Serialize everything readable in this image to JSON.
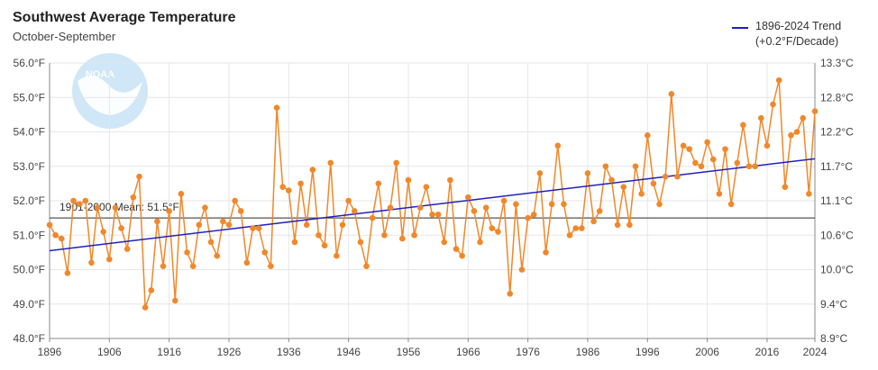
{
  "title": "Southwest Average Temperature",
  "subtitle": "October-September",
  "logo_text": "NOAA",
  "legend": {
    "trend_label": "1896-2024 Trend",
    "trend_sublabel": "(+0.2°F/Decade)"
  },
  "colors": {
    "series": "#f0882a",
    "trend": "#1f1fbf",
    "mean_line": "#555555",
    "grid": "#e6e6e6",
    "logo": "#a8d4ee"
  },
  "chart_data": {
    "type": "line",
    "title": "Southwest Average Temperature",
    "subtitle": "October-September",
    "xlim": [
      1896,
      2024
    ],
    "ylim_left": [
      48.0,
      56.0
    ],
    "x_ticks": [
      "1896",
      "1906",
      "1916",
      "1926",
      "1936",
      "1946",
      "1956",
      "1966",
      "1976",
      "1986",
      "1996",
      "2006",
      "2016",
      "2024"
    ],
    "y_ticks_left": [
      "48.0°F",
      "49.0°F",
      "50.0°F",
      "51.0°F",
      "52.0°F",
      "53.0°F",
      "54.0°F",
      "55.0°F",
      "56.0°F"
    ],
    "y_ticks_right": [
      "8.9°C",
      "9.4°C",
      "10.0°C",
      "10.6°C",
      "11.1°C",
      "11.7°C",
      "12.2°C",
      "12.8°C",
      "13.3°C"
    ],
    "grid": true,
    "legend_position": "top-right",
    "series": [
      {
        "start_year": 1896,
        "values": [
          51.3,
          51.0,
          50.9,
          49.9,
          52.0,
          51.9,
          52.0,
          50.2,
          51.8,
          51.1,
          50.3,
          51.8,
          51.2,
          50.6,
          52.1,
          52.7,
          48.9,
          49.4,
          51.4,
          50.1,
          51.7,
          49.1,
          52.2,
          50.5,
          50.1,
          51.3,
          51.8,
          50.8,
          50.4,
          51.4,
          51.3,
          52.0,
          51.7,
          50.2,
          51.2,
          51.2,
          50.5,
          50.1,
          54.7,
          52.4,
          52.3,
          50.8,
          52.5,
          51.3,
          52.9,
          51.0,
          50.7,
          53.1,
          50.4,
          51.3,
          52.0,
          51.7,
          50.8,
          50.1,
          51.5,
          52.5,
          51.0,
          51.8,
          53.1,
          50.9,
          52.6,
          51.0,
          51.8,
          52.4,
          51.6,
          51.6,
          50.8,
          52.6,
          50.6,
          50.4,
          52.1,
          51.7,
          50.8,
          51.8,
          51.2,
          51.1,
          52.0,
          49.3,
          51.9,
          50.0,
          51.5,
          51.6,
          52.8,
          50.5,
          51.9,
          53.6,
          51.9,
          51.0,
          51.2,
          51.2,
          52.8,
          51.4,
          51.7,
          53.0,
          52.6,
          51.3,
          52.4,
          51.3,
          53.0,
          52.2,
          53.9,
          52.5,
          51.9,
          52.7,
          55.1,
          52.7,
          53.6,
          53.5,
          53.1,
          53.0,
          53.7,
          53.2,
          52.2,
          53.5,
          51.9,
          53.1,
          54.2,
          53.0,
          53.0,
          54.4,
          53.6,
          54.8,
          55.5,
          52.4,
          53.9,
          54.0,
          54.4,
          52.2,
          54.6
        ]
      }
    ],
    "trend": {
      "label": "1896-2024 Trend",
      "annotation": "(+0.2°F/Decade)",
      "start": [
        1896,
        50.55
      ],
      "end": [
        2024,
        53.22
      ]
    },
    "mean": {
      "label": "1901-2000 Mean: 51.5°F",
      "value": 51.5
    }
  }
}
